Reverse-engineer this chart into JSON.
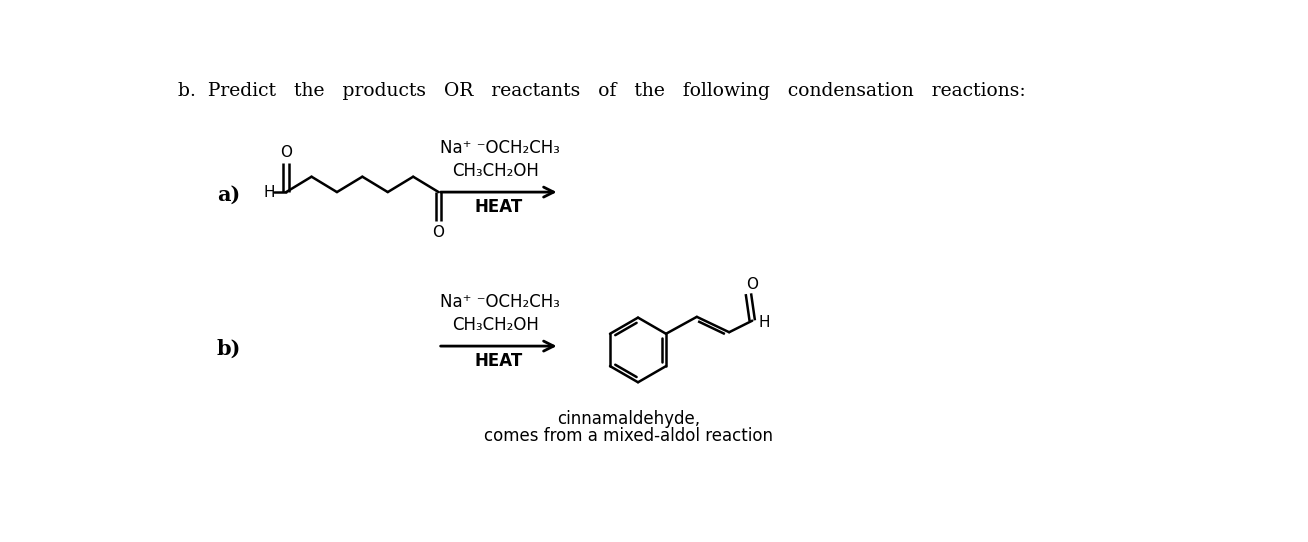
{
  "bg_color": "#ffffff",
  "title_text": "b.  Predict   the   products   OR   reactants   of   the   following   condensation   reactions:",
  "label_a": "a)",
  "label_b": "b)",
  "reagent_line1": "Na⁺ ⁻OCH₂CH₃",
  "reagent_line2": "CH₃CH₂OH",
  "reagent_line3": "HEAT",
  "caption1": "cinnamaldehyde,",
  "caption2": "comes from a mixed-aldol reaction"
}
